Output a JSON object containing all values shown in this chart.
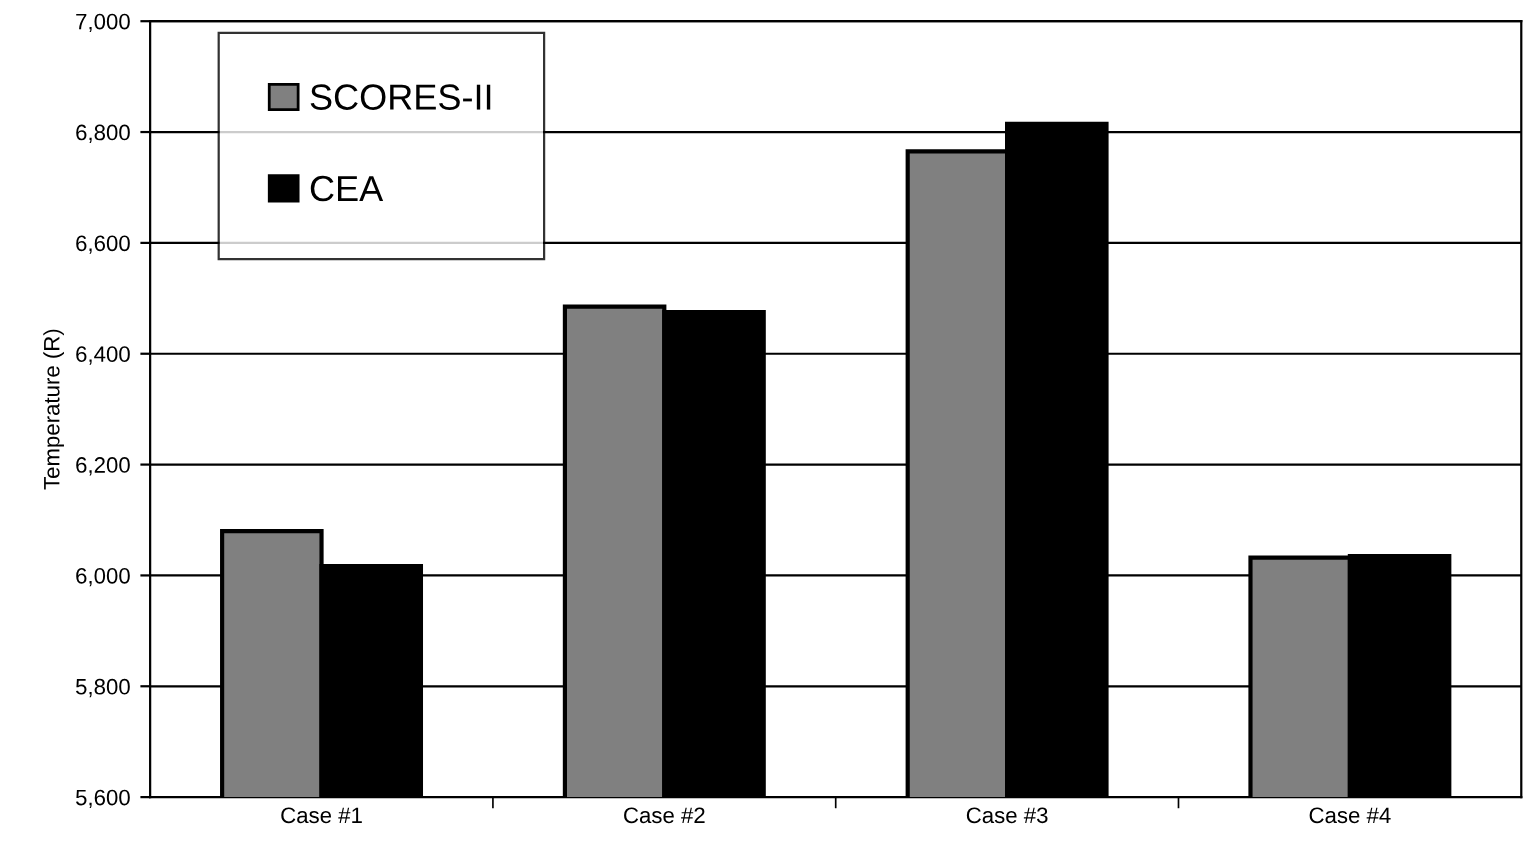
{
  "chart_data": {
    "type": "bar",
    "ylabel": "Temperature (R)",
    "categories": [
      "Case #1",
      "Case #2",
      "Case #3",
      "Case #4"
    ],
    "series": [
      {
        "name": "SCORES-II",
        "color": "#808080",
        "values": [
          6080,
          6485,
          6765,
          6032
        ]
      },
      {
        "name": "CEA",
        "color": "#000000",
        "values": [
          6017,
          6475,
          6815,
          6035
        ]
      }
    ],
    "ylim": [
      5600,
      7000
    ],
    "yticks": [
      {
        "value": 5600,
        "label": "5,600"
      },
      {
        "value": 5800,
        "label": "5,800"
      },
      {
        "value": 6000,
        "label": "6,000"
      },
      {
        "value": 6200,
        "label": "6,200"
      },
      {
        "value": 6400,
        "label": "6,400"
      },
      {
        "value": 6600,
        "label": "6,600"
      },
      {
        "value": 6800,
        "label": "6,800"
      },
      {
        "value": 7000,
        "label": "7,000"
      }
    ],
    "grid": "y",
    "legend": "top left"
  }
}
